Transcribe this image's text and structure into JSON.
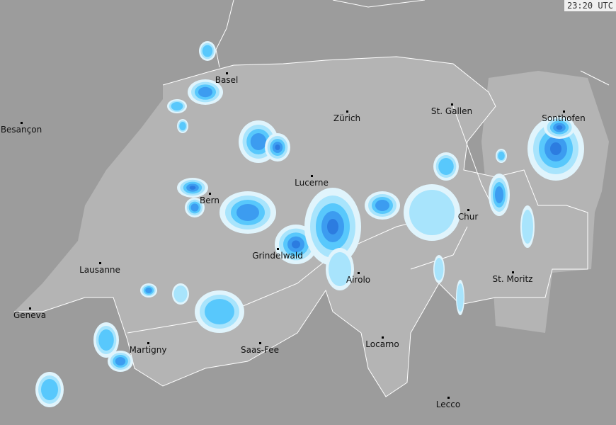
{
  "timestamp": "23:20 UTC",
  "colors": {
    "outside": "#9c9c9c",
    "inside": "#b4b4b4",
    "border": "#ffffff",
    "rain_levels": [
      "#e0f4fc",
      "#a8e4fc",
      "#58c8fc",
      "#3c9cf0",
      "#2c7ce0"
    ]
  },
  "cities": [
    {
      "name": "Basel"
    },
    {
      "name": "Zürich"
    },
    {
      "name": "St. Gallen"
    },
    {
      "name": "Sonthofen"
    },
    {
      "name": "Besançon"
    },
    {
      "name": "Lucerne"
    },
    {
      "name": "Bern"
    },
    {
      "name": "Chur"
    },
    {
      "name": "Grindelwald"
    },
    {
      "name": "Lausanne"
    },
    {
      "name": "Airolo"
    },
    {
      "name": "St. Moritz"
    },
    {
      "name": "Geneva"
    },
    {
      "name": "Martigny"
    },
    {
      "name": "Saas-Fee"
    },
    {
      "name": "Locarno"
    },
    {
      "name": "Lecco"
    }
  ]
}
